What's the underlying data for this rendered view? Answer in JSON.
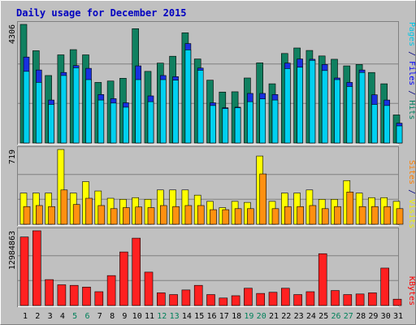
{
  "chart_data": {
    "type": "bar",
    "title": "Daily usage for December 2015",
    "days": [
      "1",
      "2",
      "3",
      "4",
      "5",
      "6",
      "7",
      "8",
      "9",
      "10",
      "11",
      "12",
      "13",
      "14",
      "15",
      "16",
      "17",
      "18",
      "19",
      "20",
      "21",
      "22",
      "23",
      "24",
      "25",
      "26",
      "27",
      "28",
      "29",
      "30",
      "31"
    ],
    "weekend_days": [
      5,
      6,
      12,
      13,
      19,
      20,
      26,
      27
    ],
    "panels": [
      {
        "id": "top",
        "max_label": "4306",
        "ymax": 4306,
        "legend": [
          {
            "text": "Pages",
            "color": "#00c8e8"
          },
          {
            "text": " / ",
            "color": "#000080"
          },
          {
            "text": "Files",
            "color": "#0000ff"
          },
          {
            "text": " / ",
            "color": "#000080"
          },
          {
            "text": "Hits",
            "color": "#008060"
          }
        ],
        "series": [
          {
            "name": "Hits",
            "color": "#108060",
            "values": [
              4306,
              3350,
              2450,
              3200,
              3390,
              3200,
              2200,
              2250,
              2350,
              4150,
              2600,
              2900,
              3150,
              4000,
              3050,
              2280,
              1850,
              1860,
              2360,
              2910,
              2150,
              3250,
              3450,
              3360,
              3160,
              3040,
              2800,
              2850,
              2560,
              2150,
              1020
            ]
          },
          {
            "name": "Files",
            "color": "#1830e0",
            "values": [
              3120,
              2650,
              1560,
              2560,
              2810,
              2710,
              1760,
              1610,
              1460,
              2800,
              1710,
              2450,
              2410,
              3610,
              2720,
              1460,
              1280,
              1300,
              1800,
              1800,
              1760,
              2900,
              3050,
              3040,
              2850,
              2360,
              2200,
              2650,
              1750,
              1560,
              720
            ]
          },
          {
            "name": "Pages",
            "color": "#00d0f0",
            "values": [
              2600,
              2200,
              1400,
              2450,
              2730,
              2300,
              1560,
              1450,
              1300,
              2300,
              1500,
              2300,
              2280,
              3380,
              2640,
              1360,
              1250,
              1280,
              1500,
              1600,
              1560,
              2700,
              2750,
              3000,
              2630,
              2300,
              2050,
              2560,
              1400,
              1360,
              620
            ]
          }
        ]
      },
      {
        "id": "mid",
        "max_label": "719",
        "ymax": 719,
        "legend": [
          {
            "text": "Sites",
            "color": "#ff8000"
          },
          {
            "text": " / ",
            "color": "#000080"
          },
          {
            "text": "Visits",
            "color": "#f0f000"
          }
        ],
        "series": [
          {
            "name": "Visits",
            "color": "#ffff00",
            "values": [
              300,
              300,
              300,
              719,
              300,
              410,
              320,
              250,
              240,
              256,
              240,
              330,
              330,
              330,
              280,
              220,
              160,
              220,
              210,
              656,
              220,
              300,
              300,
              330,
              240,
              240,
              420,
              300,
              256,
              256,
              220
            ]
          },
          {
            "name": "Sites",
            "color": "#ff9010",
            "values": [
              170,
              180,
              170,
              330,
              190,
              250,
              180,
              150,
              160,
              166,
              160,
              180,
              170,
              180,
              180,
              140,
              140,
              150,
              150,
              484,
              150,
              170,
              170,
              180,
              150,
              170,
              310,
              170,
              170,
              170,
              150
            ]
          }
        ]
      },
      {
        "id": "bot",
        "max_label": "12984863",
        "ymax": 12984863,
        "legend": [
          {
            "text": "KBytes",
            "color": "#ff0000"
          }
        ],
        "series": [
          {
            "name": "KBytes",
            "color": "#ff2020",
            "values": [
              11900000,
              12984863,
              4500000,
              3600000,
              3500000,
              3200000,
              2400000,
              5200000,
              9300000,
              11700000,
              5800000,
              2200000,
              1900000,
              2700000,
              3500000,
              1900000,
              1300000,
              1700000,
              3000000,
              2100000,
              2300000,
              3000000,
              1900000,
              2400000,
              9000000,
              2600000,
              1900000,
              2000000,
              2200000,
              6500000,
              1100000
            ]
          }
        ]
      }
    ]
  }
}
